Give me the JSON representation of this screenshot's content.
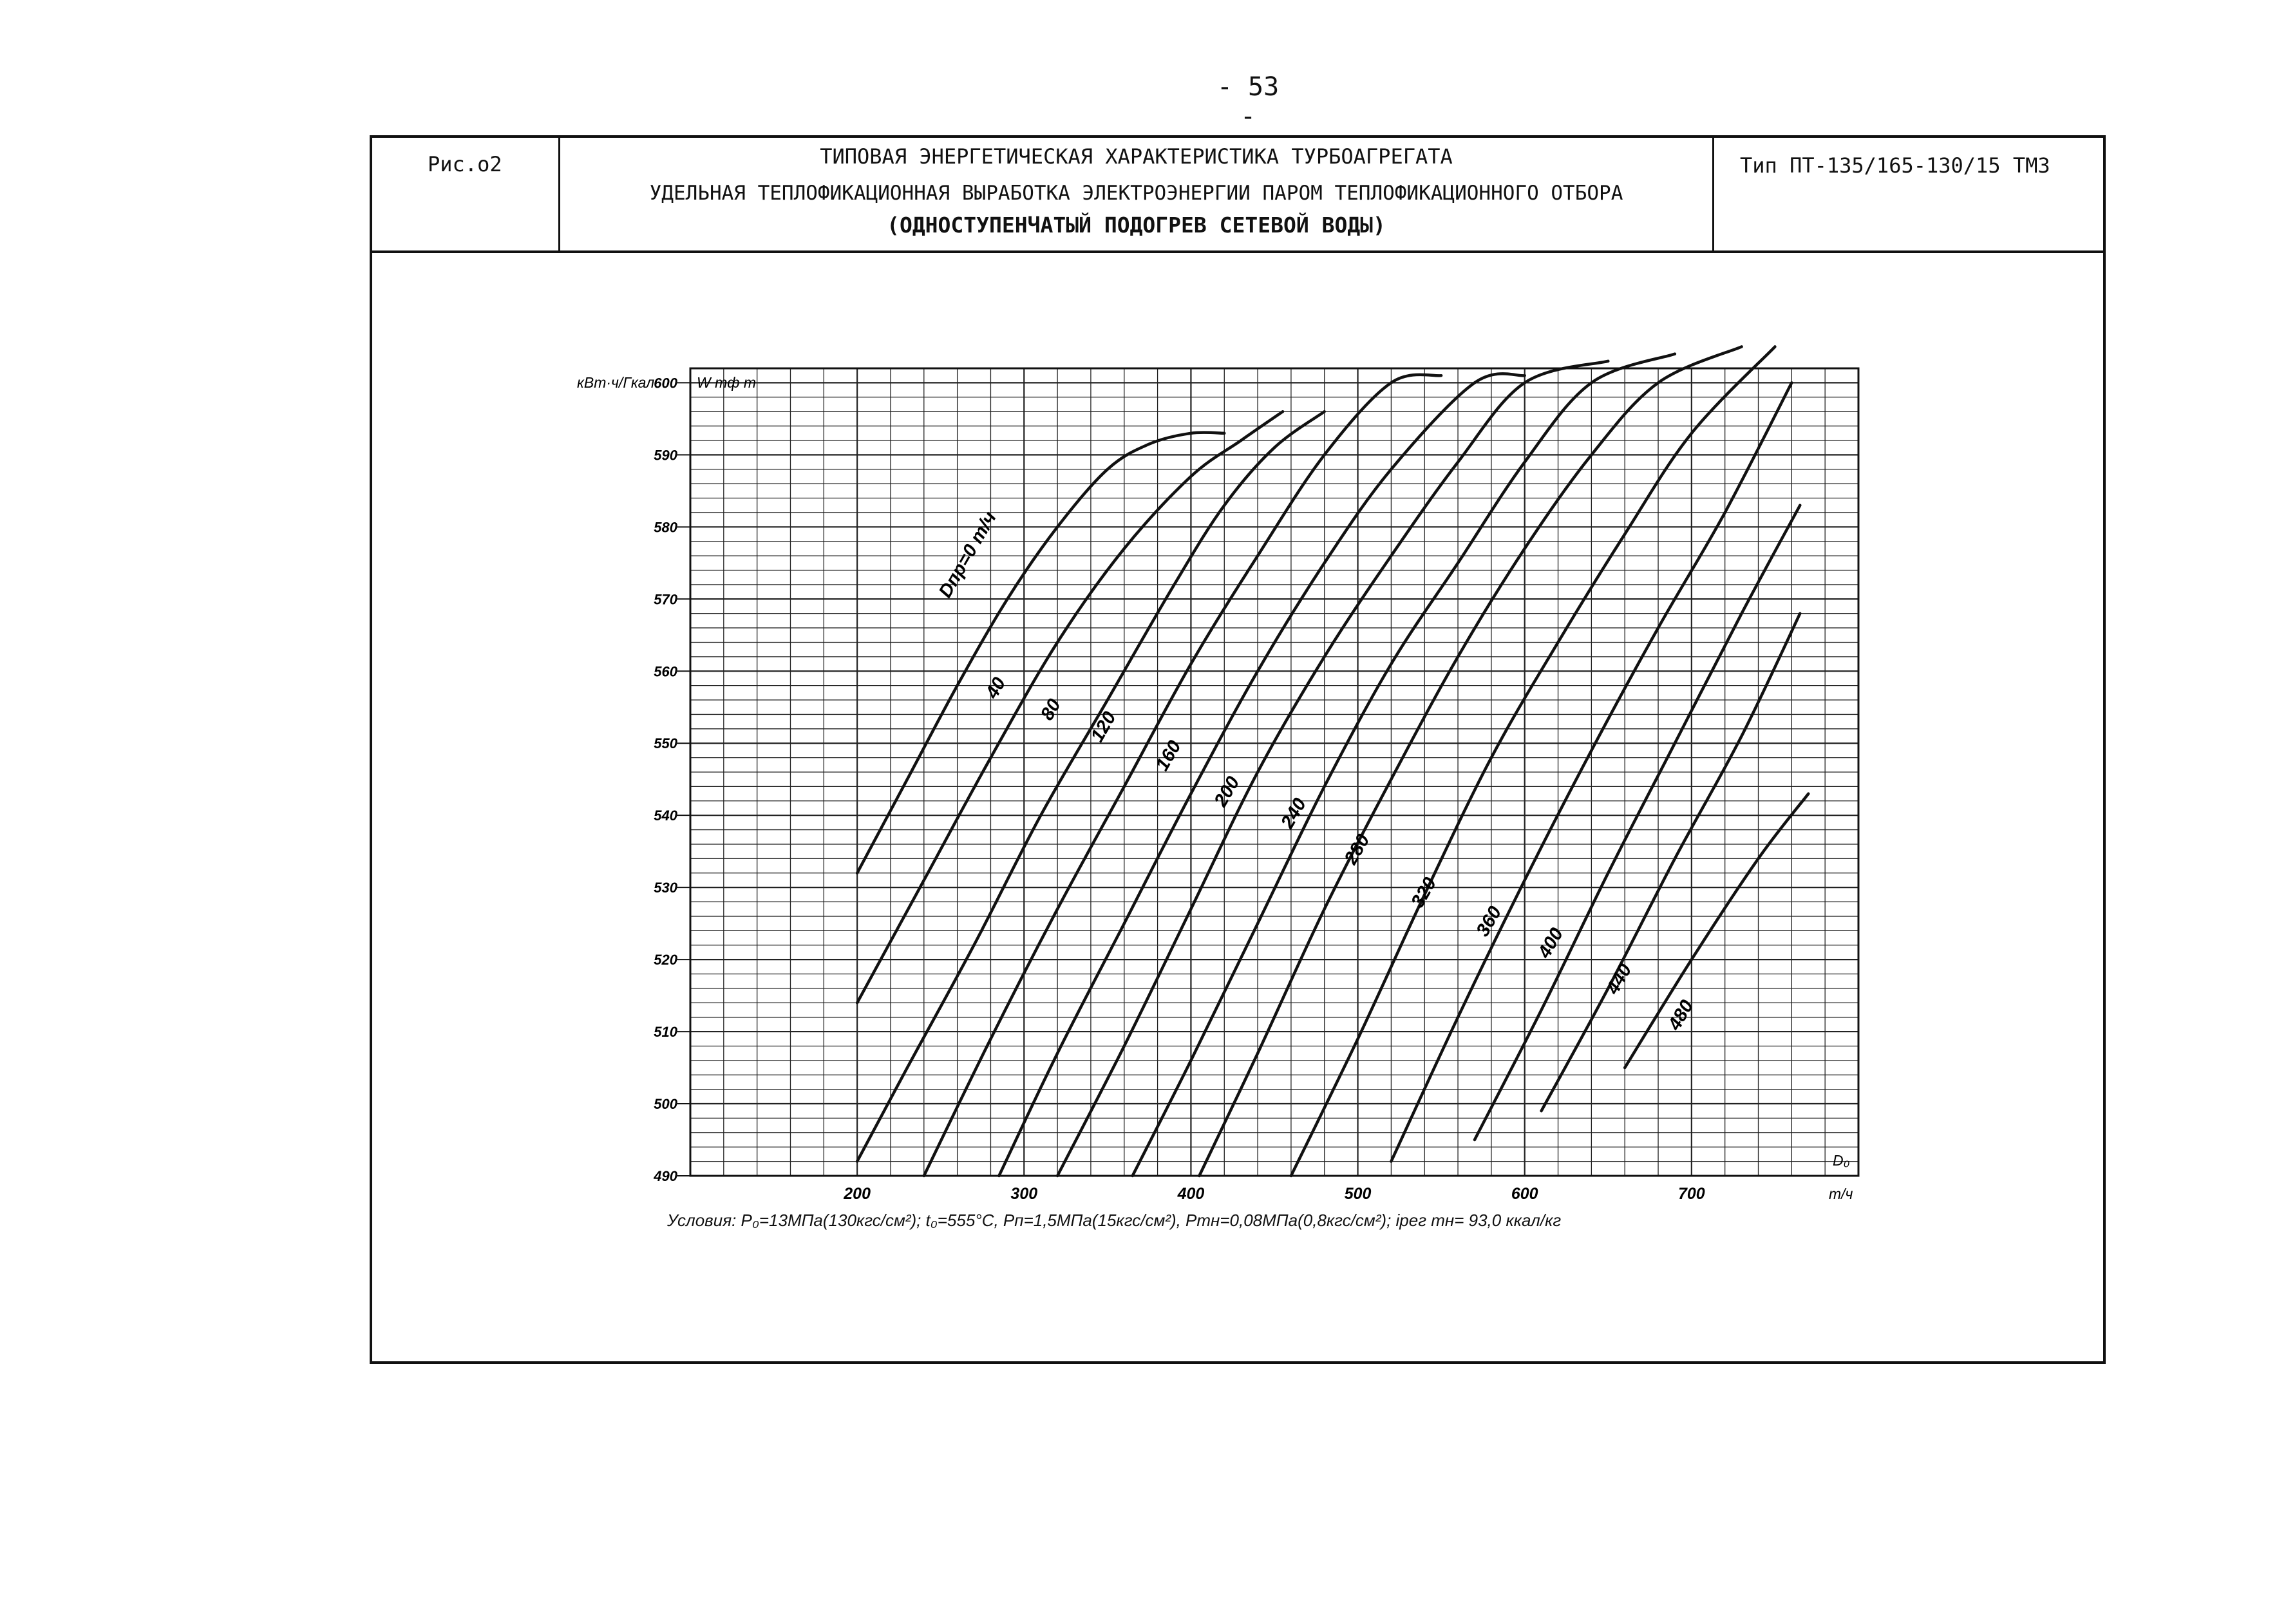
{
  "page_number": "- 53 -",
  "header": {
    "figure_label": "Рис.о2",
    "title_line_1": "ТИПОВАЯ ЭНЕРГЕТИЧЕСКАЯ ХАРАКТЕРИСТИКА ТУРБОАГРЕГАТА",
    "title_line_2": "УДЕЛЬНАЯ ТЕПЛОФИКАЦИОННАЯ ВЫРАБОТКА ЭЛЕКТРОЭНЕРГИИ ПАРОМ ТЕПЛОФИКАЦИОННОГО ОТБОРА",
    "title_line_3": "(ОДНОСТУПЕНЧАТЫЙ ПОДОГРЕВ СЕТЕВОЙ ВОДЫ)",
    "type_label": "Тип ПТ-135/165-130/15 ТМЗ"
  },
  "conditions": "Условия: P₀=13МПа(130кгс/см²); t₀=555°C, Pп=1,5МПа(15кгс/см²), Pтн=0,08МПа(0,8кгс/см²); iрег тн= 93,0 ккал/кг",
  "chart_data": {
    "type": "line",
    "ylabel": "W тф т",
    "yunit": "кВт·ч/Гкал",
    "xlabel": "D₀",
    "xunit": "т/ч",
    "xlim": [
      100,
      800
    ],
    "ylim": [
      490,
      602
    ],
    "xticks": [
      200,
      300,
      400,
      500,
      600,
      700
    ],
    "yticks": [
      490,
      500,
      510,
      520,
      530,
      540,
      550,
      560,
      570,
      580,
      590,
      600
    ],
    "grid": true,
    "curve_label_prefix": "Dпр=0 т/ч",
    "series": [
      {
        "name": "0",
        "label": "Dпр=0 т/ч",
        "label_pos": [
          255,
          570
        ],
        "x": [
          200,
          230,
          260,
          290,
          320,
          350,
          375,
          400,
          420
        ],
        "y": [
          532,
          545,
          558,
          570,
          580,
          588,
          591.5,
          593,
          593
        ]
      },
      {
        "name": "40",
        "label": "40",
        "label_pos": [
          283,
          556
        ],
        "x": [
          200,
          240,
          280,
          320,
          360,
          400,
          430,
          455
        ],
        "y": [
          514,
          531,
          548,
          564,
          577,
          587,
          592,
          596
        ]
      },
      {
        "name": "80",
        "label": "80",
        "label_pos": [
          316,
          553
        ],
        "x": [
          200,
          230,
          270,
          310,
          350,
          390,
          420,
          450,
          480
        ],
        "y": [
          492,
          505,
          522,
          540,
          556,
          572,
          583,
          591,
          596
        ]
      },
      {
        "name": "120",
        "label": "120",
        "label_pos": [
          346,
          550
        ],
        "x": [
          240,
          280,
          320,
          360,
          400,
          440,
          480,
          520,
          550
        ],
        "y": [
          490,
          509,
          527,
          544,
          561,
          576,
          590,
          600,
          601
        ]
      },
      {
        "name": "160",
        "label": "160",
        "label_pos": [
          385,
          546
        ],
        "x": [
          285,
          320,
          360,
          400,
          440,
          480,
          520,
          570,
          600
        ],
        "y": [
          490,
          507,
          525,
          543,
          560,
          575,
          588,
          600,
          601
        ]
      },
      {
        "name": "200",
        "label": "200",
        "label_pos": [
          420,
          541
        ],
        "x": [
          320,
          360,
          400,
          440,
          480,
          520,
          560,
          600,
          650
        ],
        "y": [
          490,
          508,
          527,
          546,
          562,
          576,
          589,
          600,
          603
        ]
      },
      {
        "name": "240",
        "label": "240",
        "label_pos": [
          460,
          538
        ],
        "x": [
          365,
          400,
          440,
          480,
          520,
          560,
          600,
          640,
          690
        ],
        "y": [
          490,
          506,
          525,
          544,
          561,
          575,
          589,
          600,
          604
        ]
      },
      {
        "name": "280",
        "label": "280",
        "label_pos": [
          498,
          533
        ],
        "x": [
          405,
          440,
          480,
          520,
          560,
          600,
          640,
          680,
          730
        ],
        "y": [
          490,
          507,
          527,
          545,
          562,
          577,
          590,
          600,
          605
        ]
      },
      {
        "name": "320",
        "label": "320",
        "label_pos": [
          538,
          527
        ],
        "x": [
          460,
          500,
          540,
          580,
          620,
          660,
          700,
          750
        ],
        "y": [
          490,
          509,
          529,
          548,
          564,
          579,
          593,
          605
        ]
      },
      {
        "name": "360",
        "label": "360",
        "label_pos": [
          577,
          523
        ],
        "x": [
          520,
          560,
          600,
          640,
          680,
          720,
          760
        ],
        "y": [
          492,
          512,
          531,
          549,
          566,
          582,
          600
        ]
      },
      {
        "name": "400",
        "label": "400",
        "label_pos": [
          614,
          520
        ],
        "x": [
          570,
          610,
          650,
          690,
          730,
          765
        ],
        "y": [
          495,
          513,
          532,
          550,
          568,
          583
        ]
      },
      {
        "name": "440",
        "label": "440",
        "label_pos": [
          655,
          515
        ],
        "x": [
          610,
          650,
          690,
          730,
          765
        ],
        "y": [
          499,
          516,
          534,
          551,
          568
        ]
      },
      {
        "name": "480",
        "label": "480",
        "label_pos": [
          692,
          510
        ],
        "x": [
          660,
          700,
          740,
          770
        ],
        "y": [
          505,
          520,
          534,
          543
        ]
      }
    ]
  }
}
